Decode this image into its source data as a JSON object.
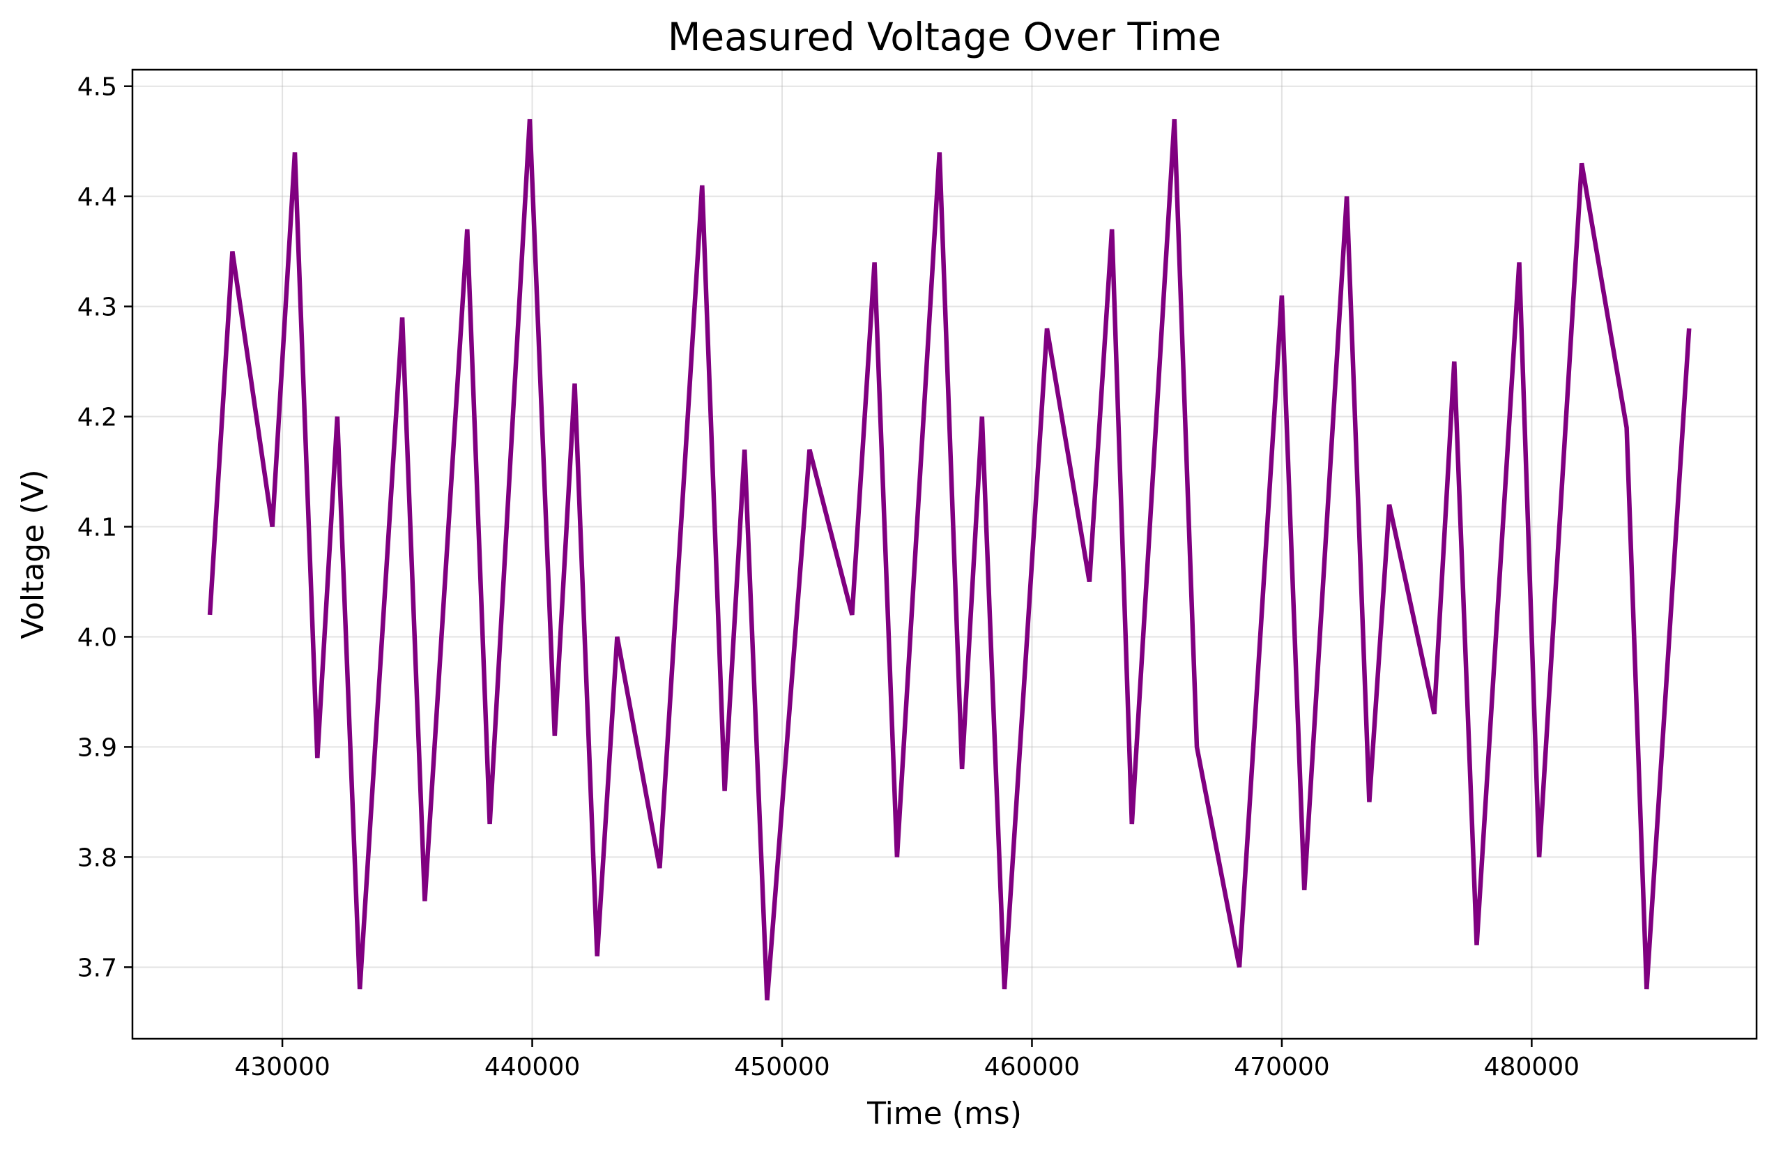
{
  "chart_data": {
    "type": "line",
    "title": "Measured Voltage Over Time",
    "xlabel": "Time (ms)",
    "ylabel": "Voltage (V)",
    "xlim": [
      424000,
      489000
    ],
    "ylim": [
      3.635,
      4.515
    ],
    "xticks": [
      430000,
      440000,
      450000,
      460000,
      470000,
      480000
    ],
    "yticks": [
      3.7,
      3.8,
      3.9,
      4.0,
      4.1,
      4.2,
      4.3,
      4.4,
      4.5
    ],
    "grid": true,
    "line_color": "#800080",
    "series": [
      {
        "x": [
          427100,
          428000,
          429600,
          430500,
          431400,
          432200,
          433100,
          434800,
          435700,
          437400,
          438300,
          439900,
          440900,
          441700,
          442600,
          443400,
          445100,
          446800,
          447700,
          448500,
          449400,
          451100,
          452800,
          453700,
          454600,
          456300,
          457200,
          458000,
          458900,
          460600,
          462300,
          463200,
          464000,
          465700,
          466600,
          468300,
          470000,
          470900,
          472600,
          473500,
          474300,
          476100,
          476900,
          477800,
          479500,
          480300,
          482000,
          483800,
          484600,
          486300
        ],
        "y": [
          4.02,
          4.35,
          4.1,
          4.44,
          3.89,
          4.2,
          3.68,
          4.29,
          3.76,
          4.37,
          3.83,
          4.47,
          3.91,
          4.23,
          3.71,
          4.0,
          3.79,
          4.41,
          3.86,
          4.17,
          3.67,
          4.17,
          4.02,
          4.34,
          3.8,
          4.44,
          3.88,
          4.2,
          3.68,
          4.28,
          4.05,
          4.37,
          3.83,
          4.47,
          3.9,
          3.7,
          4.31,
          3.77,
          4.4,
          3.85,
          4.12,
          3.93,
          4.25,
          3.72,
          4.34,
          3.8,
          4.43,
          4.19,
          3.68,
          4.28
        ]
      }
    ]
  }
}
